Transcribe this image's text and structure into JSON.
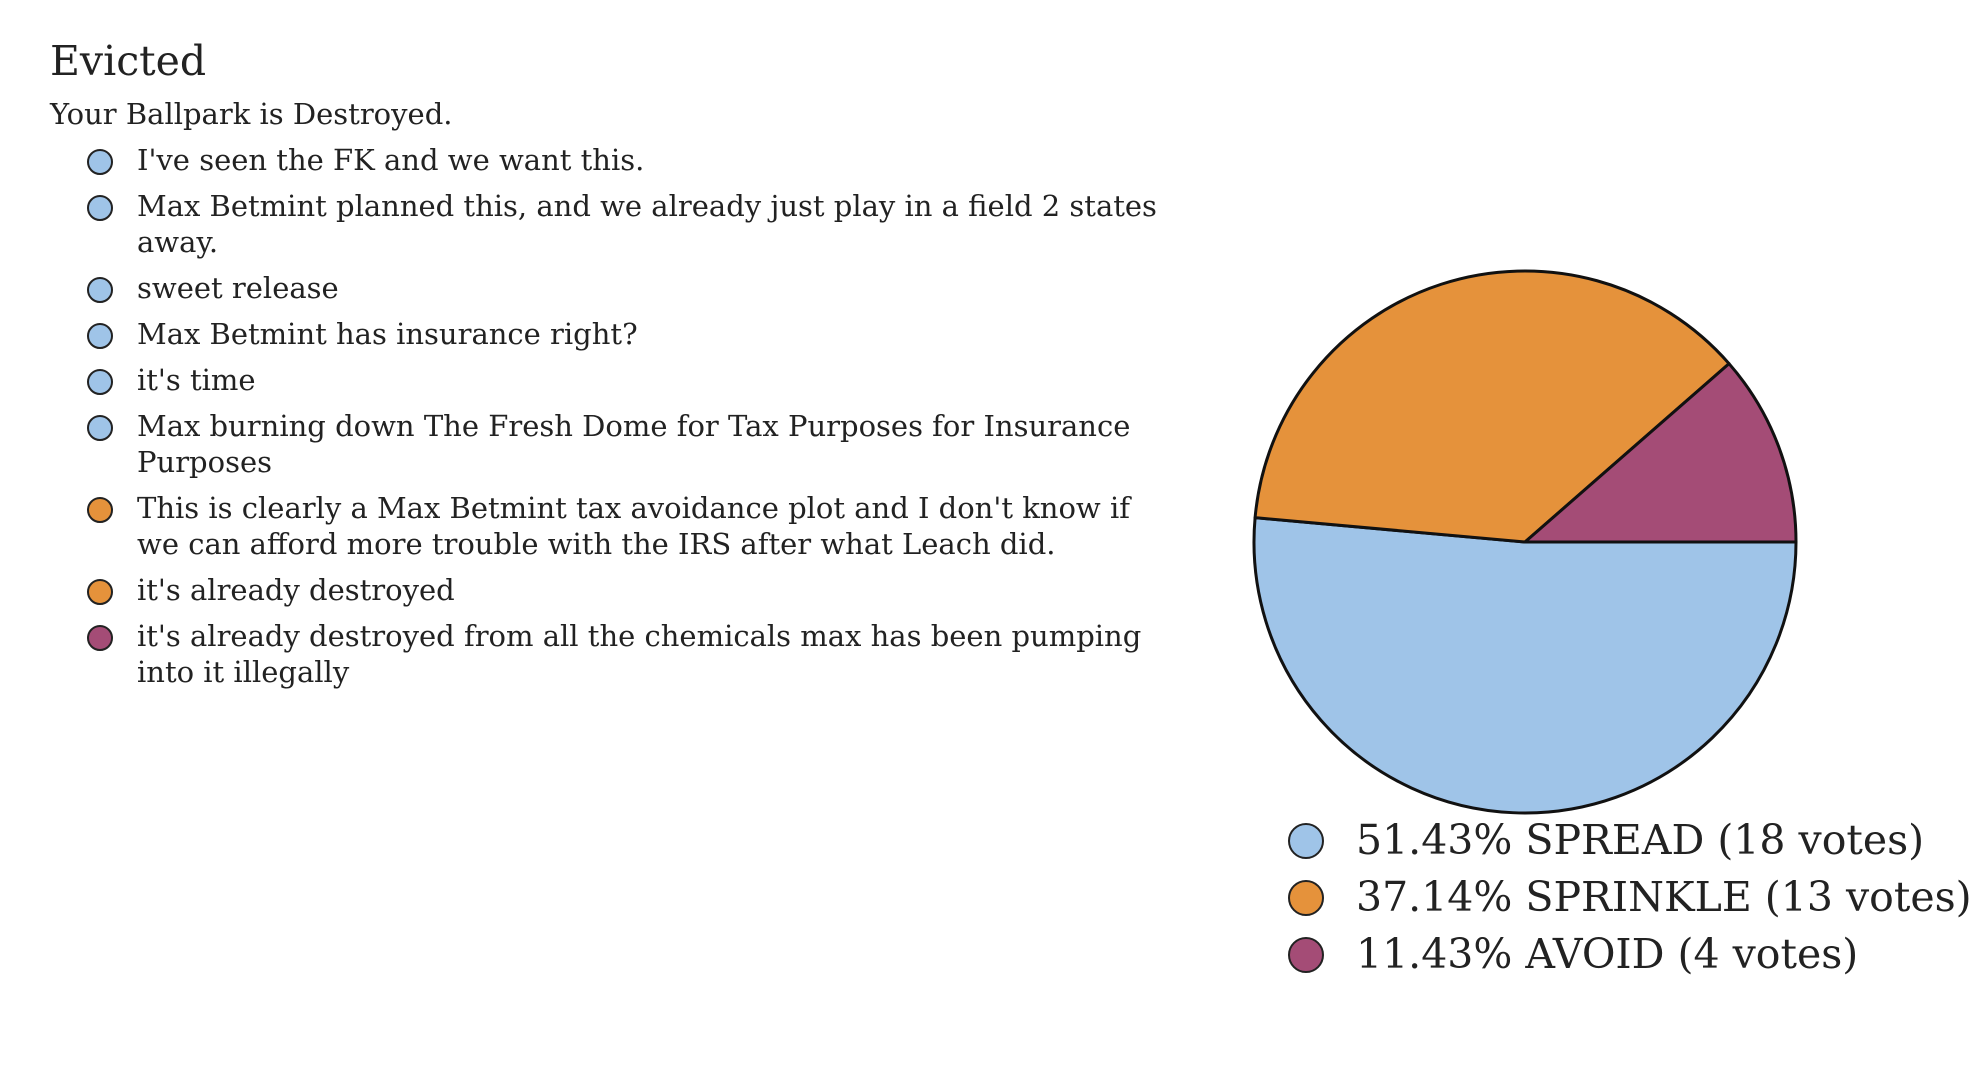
{
  "poll": {
    "title": "Evicted",
    "subtitle": "Your Ballpark is Destroyed."
  },
  "colors": {
    "spread": "#9fc4e8",
    "sprinkle": "#e5923b",
    "avoid": "#a44c76"
  },
  "responses": [
    {
      "text": "I've seen the FK and we want this.",
      "choice": "spread"
    },
    {
      "text": "Max Betmint planned this, and we already just play in a field 2 states away.",
      "choice": "spread"
    },
    {
      "text": "sweet release",
      "choice": "spread"
    },
    {
      "text": "Max Betmint has insurance right?",
      "choice": "spread"
    },
    {
      "text": "it's time",
      "choice": "spread"
    },
    {
      "text": "Max burning down The Fresh Dome for Tax Purposes for Insurance Purposes",
      "choice": "spread"
    },
    {
      "text": "This is clearly a Max Betmint tax avoidance plot and I don't know if we can afford more trouble with the IRS after what Leach did.",
      "choice": "sprinkle"
    },
    {
      "text": "it's already destroyed",
      "choice": "sprinkle"
    },
    {
      "text": "it's already destroyed from all the chemicals max has been pumping into it illegally",
      "choice": "avoid"
    }
  ],
  "chart_data": {
    "type": "pie",
    "title": "",
    "legend_position": "bottom",
    "start_angle_deg": 0,
    "direction": "clockwise-from-right",
    "slices": [
      {
        "key": "spread",
        "label": "51.43% SPREAD (18 votes)",
        "percent": 51.43,
        "votes": 18,
        "color": "#9fc4e8"
      },
      {
        "key": "sprinkle",
        "label": "37.14% SPRINKLE (13 votes)",
        "percent": 37.14,
        "votes": 13,
        "color": "#e5923b"
      },
      {
        "key": "avoid",
        "label": "11.43% AVOID (4 votes)",
        "percent": 11.43,
        "votes": 4,
        "color": "#a44c76"
      }
    ]
  }
}
